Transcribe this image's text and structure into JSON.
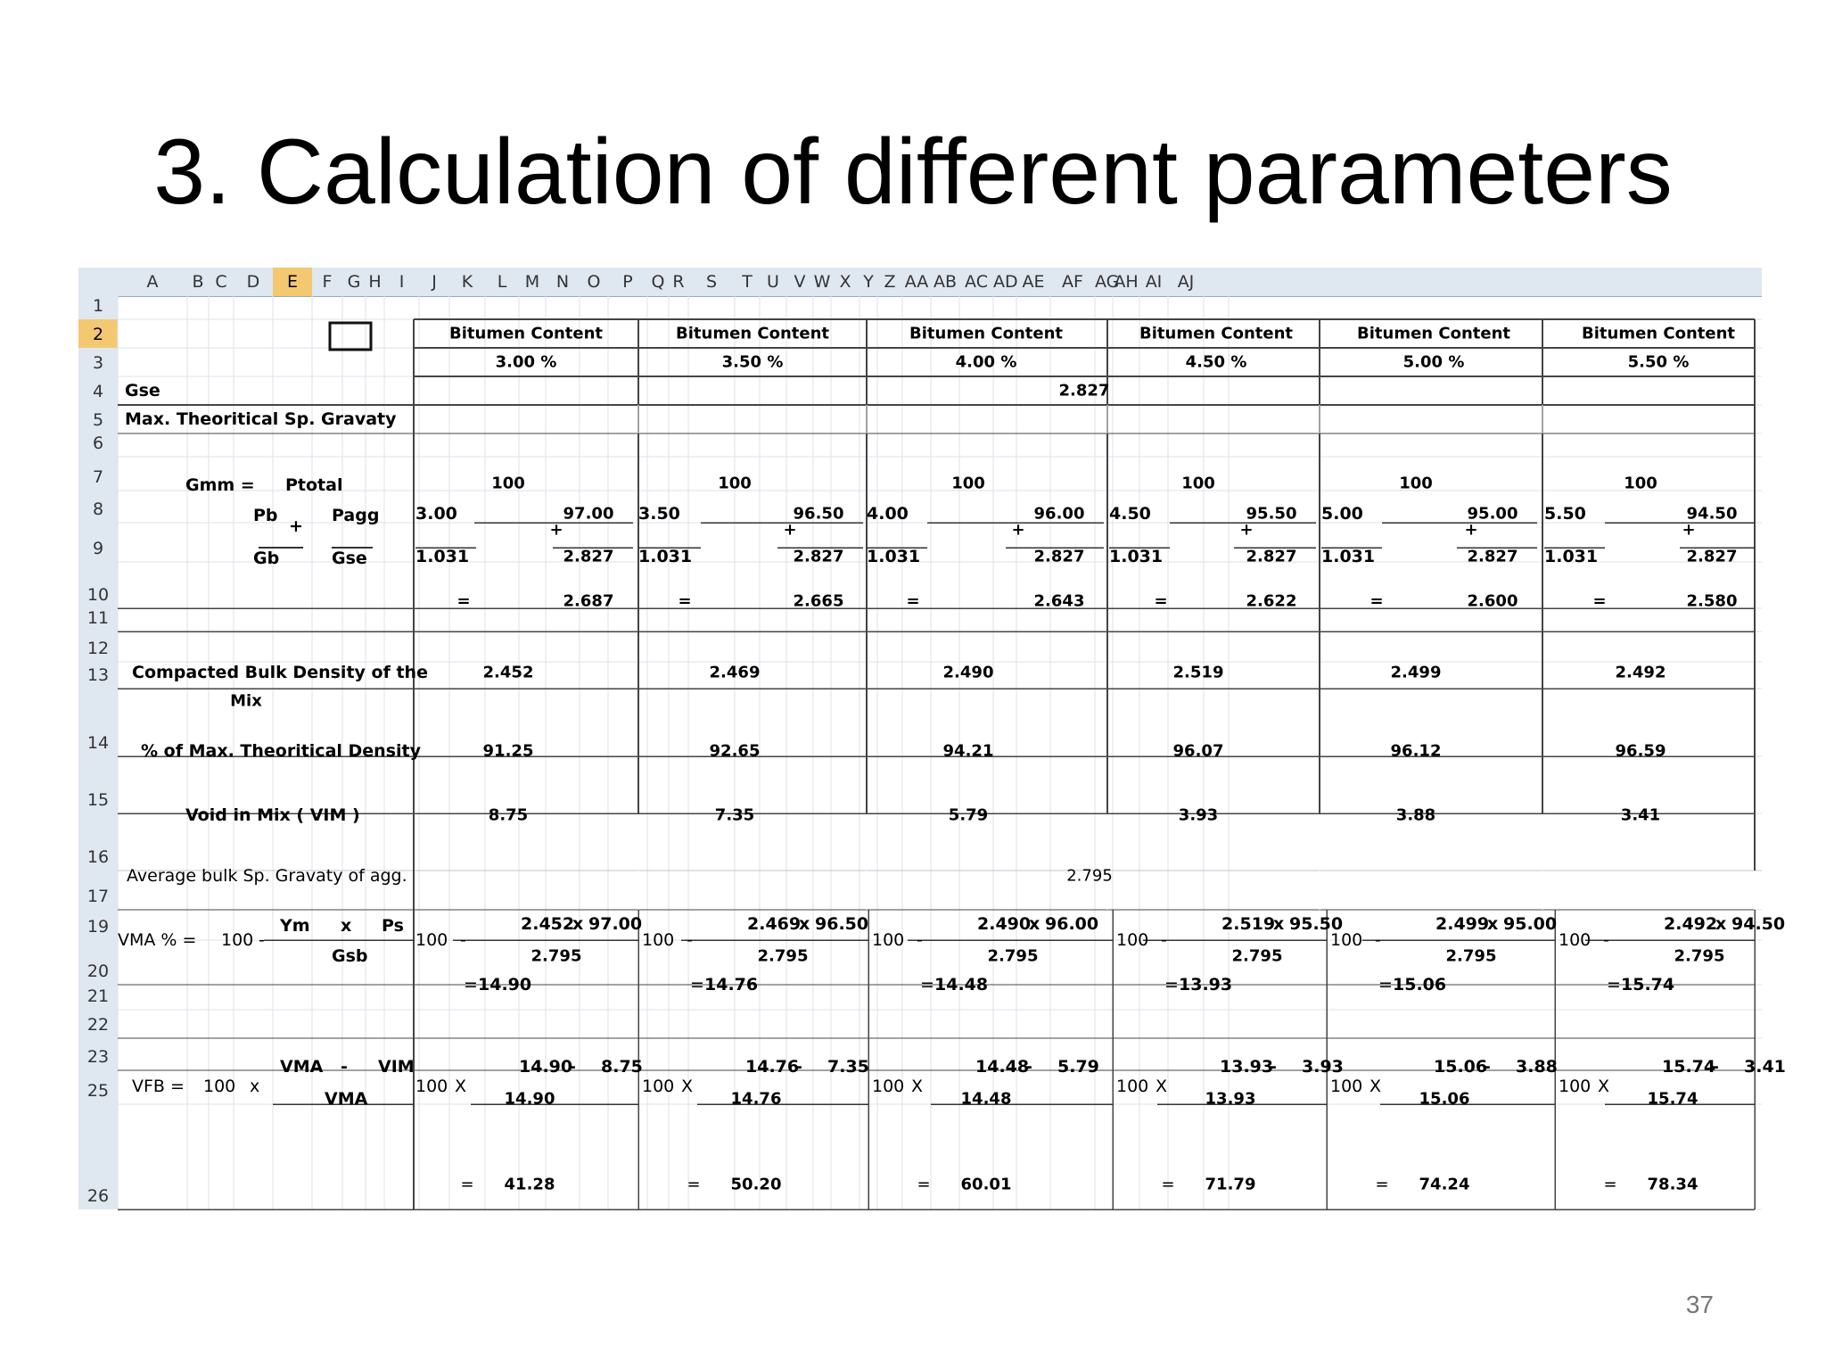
{
  "slide": {
    "title": "3. Calculation of different parameters",
    "page_number": "37"
  },
  "sheet": {
    "columns": [
      "A",
      "B",
      "C",
      "D",
      "E",
      "F",
      "G",
      "H",
      "I",
      "J",
      "K",
      "L",
      "M",
      "N",
      "O",
      "P",
      "Q",
      "R",
      "S",
      "T",
      "U",
      "V",
      "W",
      "X",
      "Y",
      "Z",
      "AA",
      "AB",
      "AC",
      "AD",
      "AE",
      "AF",
      "AG",
      "AH",
      "AI",
      "AJ"
    ],
    "selected_column": "E",
    "row_numbers": [
      "1",
      "2",
      "3",
      "4",
      "5",
      "6",
      "7",
      "8",
      "9",
      "10",
      "11",
      "12",
      "13",
      "14",
      "15",
      "16",
      "17",
      "19",
      "20",
      "21",
      "22",
      "23",
      "25",
      "26"
    ],
    "selected_row": "2",
    "header_bitumen": "Bitumen Content",
    "bitumen_percents": [
      "3.00  %",
      "3.50  %",
      "4.00  %",
      "4.50  %",
      "5.00  %",
      "5.50  %"
    ],
    "labels": {
      "gse": "Gse",
      "gse_value": "2.827",
      "max_sg": "Max. Theoritical Sp. Gravaty",
      "gmm": "Gmm  =",
      "ptotal": "Ptotal",
      "pb": "Pb",
      "pagg": "Pagg",
      "plus": "+",
      "gb": "Gb",
      "gse_den": "Gse",
      "compacted_1": "Compacted Bulk Density of the",
      "compacted_2": "Mix",
      "pct_density": "% of Max. Theoritical Density",
      "vim": "Void in Mix ( VIM )",
      "avg_bulk": "Average bulk Sp. Gravaty of agg.",
      "avg_bulk_value": "2.795",
      "vma_label": "VMA % =",
      "hundred": "100",
      "minus": "-",
      "ym": "Ym",
      "x": "x",
      "ps": "Ps",
      "gsb": "Gsb",
      "vfb_label": "VFB =",
      "x_upper": "X",
      "vma_num": "VMA",
      "vim_num": "VIM",
      "vma_den": "VMA",
      "eq": "="
    },
    "groups": [
      {
        "pb": "3.00",
        "pagg": "97.00",
        "gb": "1.031",
        "gse": "2.827",
        "gmm": "2.687",
        "gmb": "2.452",
        "pct": "91.25",
        "vim": "8.75",
        "vma": "14.90",
        "vfb": "41.28"
      },
      {
        "pb": "3.50",
        "pagg": "96.50",
        "gb": "1.031",
        "gse": "2.827",
        "gmm": "2.665",
        "gmb": "2.469",
        "pct": "92.65",
        "vim": "7.35",
        "vma": "14.76",
        "vfb": "50.20"
      },
      {
        "pb": "4.00",
        "pagg": "96.00",
        "gb": "1.031",
        "gse": "2.827",
        "gmm": "2.643",
        "gmb": "2.490",
        "pct": "94.21",
        "vim": "5.79",
        "vma": "14.48",
        "vfb": "60.01"
      },
      {
        "pb": "4.50",
        "pagg": "95.50",
        "gb": "1.031",
        "gse": "2.827",
        "gmm": "2.622",
        "gmb": "2.519",
        "pct": "96.07",
        "vim": "3.93",
        "vma": "13.93",
        "vfb": "71.79"
      },
      {
        "pb": "5.00",
        "pagg": "95.00",
        "gb": "1.031",
        "gse": "2.827",
        "gmm": "2.600",
        "gmb": "2.499",
        "pct": "96.12",
        "vim": "3.88",
        "vma": "15.06",
        "vfb": "74.24"
      },
      {
        "pb": "5.50",
        "pagg": "94.50",
        "gb": "1.031",
        "gse": "2.827",
        "gmm": "2.580",
        "gmb": "2.492",
        "pct": "96.59",
        "vim": "3.41",
        "vma": "15.74",
        "vfb": "78.34"
      }
    ]
  }
}
